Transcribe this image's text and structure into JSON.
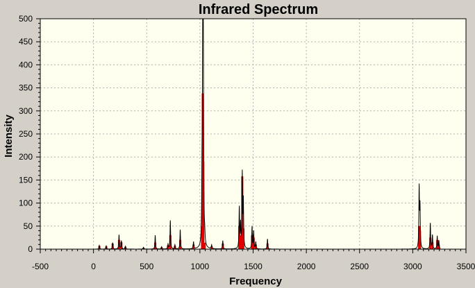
{
  "chart_data": {
    "type": "line",
    "title": "Infrared Spectrum",
    "xlabel": "Frequency",
    "ylabel": "Intensity",
    "xlim": [
      -500,
      3500
    ],
    "ylim": [
      0,
      500
    ],
    "x_ticks": [
      -500,
      0,
      500,
      1000,
      1500,
      2000,
      2500,
      3000,
      3500
    ],
    "y_ticks": [
      0,
      50,
      100,
      150,
      200,
      250,
      300,
      350,
      400,
      450,
      500
    ],
    "grid": true,
    "background_color": "#fffff0",
    "frame_color": "#d4d0c8",
    "spectrum_color": "#000000",
    "stick_color": "#e00000",
    "spectrum_range": [
      0,
      3260
    ],
    "peaks": [
      {
        "x": 55,
        "y": 8
      },
      {
        "x": 120,
        "y": 7
      },
      {
        "x": 180,
        "y": 14
      },
      {
        "x": 240,
        "y": 31
      },
      {
        "x": 262,
        "y": 18
      },
      {
        "x": 300,
        "y": 6
      },
      {
        "x": 470,
        "y": 4
      },
      {
        "x": 580,
        "y": 30
      },
      {
        "x": 640,
        "y": 5
      },
      {
        "x": 700,
        "y": 10
      },
      {
        "x": 722,
        "y": 62
      },
      {
        "x": 765,
        "y": 9
      },
      {
        "x": 815,
        "y": 42
      },
      {
        "x": 940,
        "y": 15
      },
      {
        "x": 1020,
        "y": 130
      },
      {
        "x": 1027,
        "y": 478
      },
      {
        "x": 1032,
        "y": 370
      },
      {
        "x": 1045,
        "y": 18
      },
      {
        "x": 1110,
        "y": 8
      },
      {
        "x": 1215,
        "y": 18
      },
      {
        "x": 1370,
        "y": 88
      },
      {
        "x": 1382,
        "y": 50
      },
      {
        "x": 1398,
        "y": 160
      },
      {
        "x": 1408,
        "y": 100
      },
      {
        "x": 1490,
        "y": 48
      },
      {
        "x": 1505,
        "y": 38
      },
      {
        "x": 1525,
        "y": 15
      },
      {
        "x": 1635,
        "y": 22
      },
      {
        "x": 3060,
        "y": 130
      },
      {
        "x": 3068,
        "y": 88
      },
      {
        "x": 3165,
        "y": 56
      },
      {
        "x": 3185,
        "y": 30
      },
      {
        "x": 3230,
        "y": 28
      },
      {
        "x": 3245,
        "y": 18
      }
    ],
    "sticks": [
      {
        "x": 55,
        "y": 7
      },
      {
        "x": 120,
        "y": 6
      },
      {
        "x": 180,
        "y": 12
      },
      {
        "x": 240,
        "y": 20
      },
      {
        "x": 262,
        "y": 15
      },
      {
        "x": 300,
        "y": 5
      },
      {
        "x": 470,
        "y": 3
      },
      {
        "x": 580,
        "y": 14
      },
      {
        "x": 640,
        "y": 4
      },
      {
        "x": 700,
        "y": 8
      },
      {
        "x": 722,
        "y": 30
      },
      {
        "x": 765,
        "y": 7
      },
      {
        "x": 815,
        "y": 20
      },
      {
        "x": 940,
        "y": 10
      },
      {
        "x": 1020,
        "y": 50
      },
      {
        "x": 1027,
        "y": 338
      },
      {
        "x": 1032,
        "y": 190
      },
      {
        "x": 1045,
        "y": 14
      },
      {
        "x": 1110,
        "y": 6
      },
      {
        "x": 1215,
        "y": 12
      },
      {
        "x": 1370,
        "y": 50
      },
      {
        "x": 1382,
        "y": 30
      },
      {
        "x": 1398,
        "y": 158
      },
      {
        "x": 1408,
        "y": 45
      },
      {
        "x": 1490,
        "y": 30
      },
      {
        "x": 1505,
        "y": 25
      },
      {
        "x": 1525,
        "y": 10
      },
      {
        "x": 1635,
        "y": 12
      },
      {
        "x": 3060,
        "y": 50
      },
      {
        "x": 3068,
        "y": 40
      },
      {
        "x": 3165,
        "y": 25
      },
      {
        "x": 3185,
        "y": 15
      },
      {
        "x": 3230,
        "y": 20
      },
      {
        "x": 3245,
        "y": 10
      }
    ]
  }
}
